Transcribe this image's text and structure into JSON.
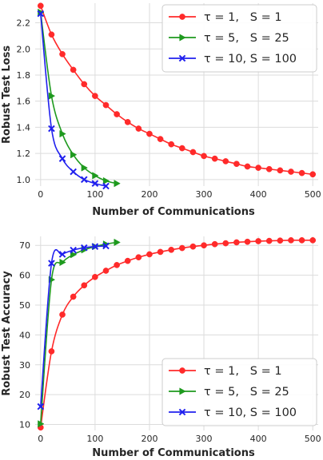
{
  "chart_data": [
    {
      "type": "line",
      "xlabel": "Number of Communications",
      "ylabel": "Robust Test Loss",
      "xlim": [
        -10,
        510
      ],
      "ylim": [
        0.95,
        2.35
      ],
      "xticks": [
        0,
        100,
        200,
        300,
        400,
        500
      ],
      "yticks": [
        1.0,
        1.2,
        1.4,
        1.6,
        1.8,
        2.0,
        2.2
      ],
      "ytick_labels": [
        "1.0",
        "1.2",
        "1.4",
        "1.6",
        "1.8",
        "2.0",
        "2.2"
      ],
      "grid": true,
      "legend_position": "top-right",
      "series": [
        {
          "name": "τ = 1,   S = 1",
          "color": "#ff2a2a",
          "marker": "circle",
          "x": [
            0,
            20,
            40,
            60,
            80,
            100,
            120,
            140,
            160,
            180,
            200,
            220,
            240,
            260,
            280,
            300,
            320,
            340,
            360,
            380,
            400,
            420,
            440,
            460,
            480,
            500
          ],
          "y": [
            2.33,
            2.11,
            1.96,
            1.84,
            1.73,
            1.64,
            1.57,
            1.5,
            1.44,
            1.39,
            1.35,
            1.31,
            1.27,
            1.24,
            1.21,
            1.18,
            1.16,
            1.14,
            1.12,
            1.1,
            1.09,
            1.08,
            1.07,
            1.06,
            1.05,
            1.04
          ]
        },
        {
          "name": "τ = 5,   S = 25",
          "color": "#1e9a1e",
          "marker": "triangle-right",
          "x": [
            0,
            20,
            40,
            60,
            80,
            100,
            120,
            140
          ],
          "y": [
            2.28,
            1.64,
            1.35,
            1.19,
            1.09,
            1.03,
            0.99,
            0.97
          ],
          "marker_x": [
            0,
            20,
            40,
            60,
            80,
            100,
            120,
            140
          ]
        },
        {
          "name": "τ = 10, S = 100",
          "color": "#2020ee",
          "marker": "x",
          "x": [
            0,
            20,
            40,
            60,
            80,
            100,
            120
          ],
          "y": [
            2.27,
            1.39,
            1.16,
            1.06,
            1.0,
            0.97,
            0.95
          ]
        }
      ]
    },
    {
      "type": "line",
      "xlabel": "Number of Communications",
      "ylabel": "Robust Test Accuracy",
      "xlim": [
        -10,
        510
      ],
      "ylim": [
        8,
        73
      ],
      "xticks": [
        0,
        100,
        200,
        300,
        400,
        500
      ],
      "yticks": [
        10,
        20,
        30,
        40,
        50,
        60,
        70
      ],
      "ytick_labels": [
        "10",
        "20",
        "30",
        "40",
        "50",
        "60",
        "70"
      ],
      "grid": true,
      "legend_position": "bottom-right",
      "series": [
        {
          "name": "τ = 1,   S = 1",
          "color": "#ff2a2a",
          "marker": "circle",
          "x": [
            0,
            20,
            40,
            60,
            80,
            100,
            120,
            140,
            160,
            180,
            200,
            220,
            240,
            260,
            280,
            300,
            320,
            340,
            360,
            380,
            400,
            420,
            440,
            460,
            480,
            500
          ],
          "y": [
            9.0,
            34.5,
            46.8,
            52.8,
            56.6,
            59.4,
            61.5,
            63.4,
            64.8,
            66.0,
            67.0,
            67.8,
            68.5,
            69.1,
            69.6,
            70.0,
            70.4,
            70.7,
            71.0,
            71.2,
            71.4,
            71.5,
            71.6,
            71.7,
            71.7,
            71.7
          ]
        },
        {
          "name": "τ = 5,   S = 25",
          "color": "#1e9a1e",
          "marker": "triangle-right",
          "x": [
            0,
            20,
            40,
            60,
            80,
            100,
            120,
            140
          ],
          "y": [
            10.2,
            58.5,
            64.3,
            66.9,
            68.5,
            69.6,
            70.4,
            71.0
          ]
        },
        {
          "name": "τ = 10, S = 100",
          "color": "#2020ee",
          "marker": "x",
          "x": [
            0,
            20,
            40,
            60,
            80,
            100,
            120
          ],
          "y": [
            16.0,
            64.0,
            67.0,
            68.4,
            69.2,
            69.6,
            69.8
          ]
        }
      ]
    }
  ]
}
